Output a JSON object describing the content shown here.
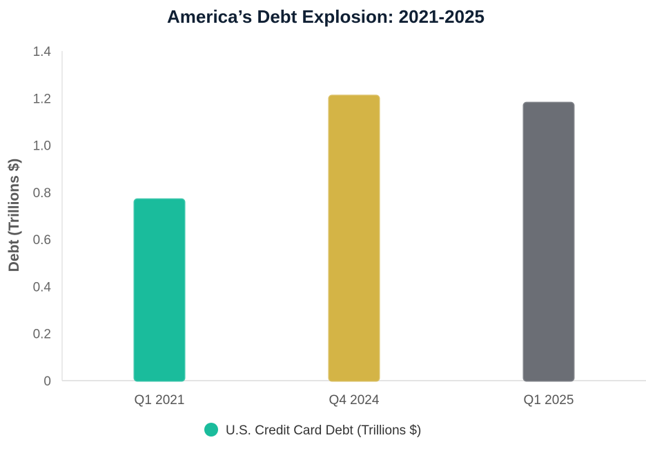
{
  "chart_data": {
    "type": "bar",
    "title": "America’s Debt Explosion: 2021-2025",
    "ylabel": "Debt (Trillions $)",
    "xlabel": "",
    "categories": [
      "Q1 2021",
      "Q4 2024",
      "Q1 2025"
    ],
    "series": [
      {
        "name": "U.S. Credit Card Debt (Trillions $)",
        "values": [
          0.77,
          1.21,
          1.18
        ]
      }
    ],
    "bar_colors": [
      "#1abc9c",
      "#d4b446",
      "#6b6e75"
    ],
    "legend_color": "#1abc9c",
    "ylim": [
      0,
      1.4
    ],
    "yticks": [
      "0",
      "0.2",
      "0.4",
      "0.6",
      "0.8",
      "1.0",
      "1.2",
      "1.4"
    ],
    "grid": false,
    "legend_position": "bottom"
  }
}
